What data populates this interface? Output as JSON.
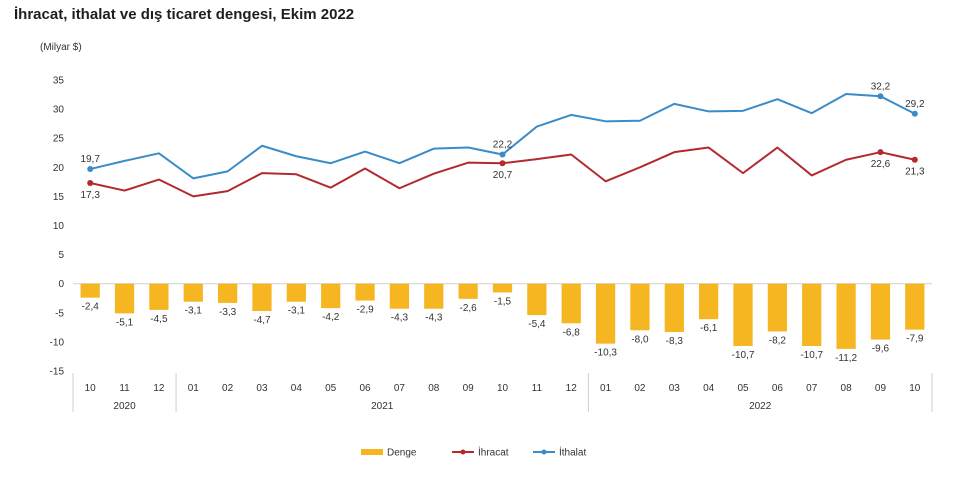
{
  "title": "İhracat, ithalat ve dış ticaret dengesi, Ekim 2022",
  "chart_data": {
    "type": "bar+line",
    "unit_label": "(Milyar $)",
    "ylim": [
      -15,
      35
    ],
    "yticks": [
      -15,
      -10,
      -5,
      0,
      5,
      10,
      15,
      20,
      25,
      30,
      35
    ],
    "categories": [
      "10",
      "11",
      "12",
      "01",
      "02",
      "03",
      "04",
      "05",
      "06",
      "07",
      "08",
      "09",
      "10",
      "11",
      "12",
      "01",
      "02",
      "03",
      "04",
      "05",
      "06",
      "07",
      "08",
      "09",
      "10"
    ],
    "years": [
      {
        "label": "2020",
        "start": 0,
        "end": 2
      },
      {
        "label": "2021",
        "start": 3,
        "end": 14
      },
      {
        "label": "2022",
        "start": 15,
        "end": 24
      }
    ],
    "series": [
      {
        "name": "Denge",
        "kind": "bar",
        "color": "#f5b622",
        "values": [
          -2.4,
          -5.1,
          -4.5,
          -3.1,
          -3.3,
          -4.7,
          -3.1,
          -4.2,
          -2.9,
          -4.3,
          -4.3,
          -2.6,
          -1.5,
          -5.4,
          -6.8,
          -10.3,
          -8.0,
          -8.3,
          -6.1,
          -10.7,
          -8.2,
          -10.7,
          -11.2,
          -9.6,
          -7.9
        ],
        "labels": [
          "-2,4",
          "-5,1",
          "-4,5",
          "-3,1",
          "-3,3",
          "-4,7",
          "-3,1",
          "-4,2",
          "-2,9",
          "-4,3",
          "-4,3",
          "-2,6",
          "-1,5",
          "-5,4",
          "-6,8",
          "-10,3",
          "-8,0",
          "-8,3",
          "-6,1",
          "-10,7",
          "-8,2",
          "-10,7",
          "-11,2",
          "-9,6",
          "-7,9"
        ]
      },
      {
        "name": "İhracat",
        "kind": "line",
        "color": "#b22a2e",
        "values": [
          17.3,
          16.0,
          17.9,
          15.0,
          15.9,
          19.0,
          18.8,
          16.5,
          19.8,
          16.4,
          18.9,
          20.8,
          20.7,
          21.4,
          22.2,
          17.6,
          20.0,
          22.6,
          23.4,
          19.0,
          23.4,
          18.6,
          21.3,
          22.6,
          21.3
        ],
        "point_labels": [
          {
            "index": 0,
            "text": "17,3",
            "pos": "below"
          },
          {
            "index": 12,
            "text": "20,7",
            "pos": "below"
          },
          {
            "index": 23,
            "text": "22,6",
            "pos": "below"
          },
          {
            "index": 24,
            "text": "21,3",
            "pos": "below"
          }
        ]
      },
      {
        "name": "İthalat",
        "kind": "line",
        "color": "#3a8cc9",
        "values": [
          19.7,
          21.1,
          22.4,
          18.1,
          19.3,
          23.7,
          21.9,
          20.7,
          22.7,
          20.7,
          23.2,
          23.4,
          22.2,
          27.0,
          29.0,
          27.9,
          28.0,
          30.9,
          29.6,
          29.7,
          31.7,
          29.3,
          32.6,
          32.2,
          29.2
        ],
        "point_labels": [
          {
            "index": 0,
            "text": "19,7",
            "pos": "above"
          },
          {
            "index": 12,
            "text": "22,2",
            "pos": "above"
          },
          {
            "index": 23,
            "text": "32,2",
            "pos": "above"
          },
          {
            "index": 24,
            "text": "29,2",
            "pos": "above"
          }
        ]
      }
    ],
    "legend": [
      "Denge",
      "İhracat",
      "İthalat"
    ]
  }
}
